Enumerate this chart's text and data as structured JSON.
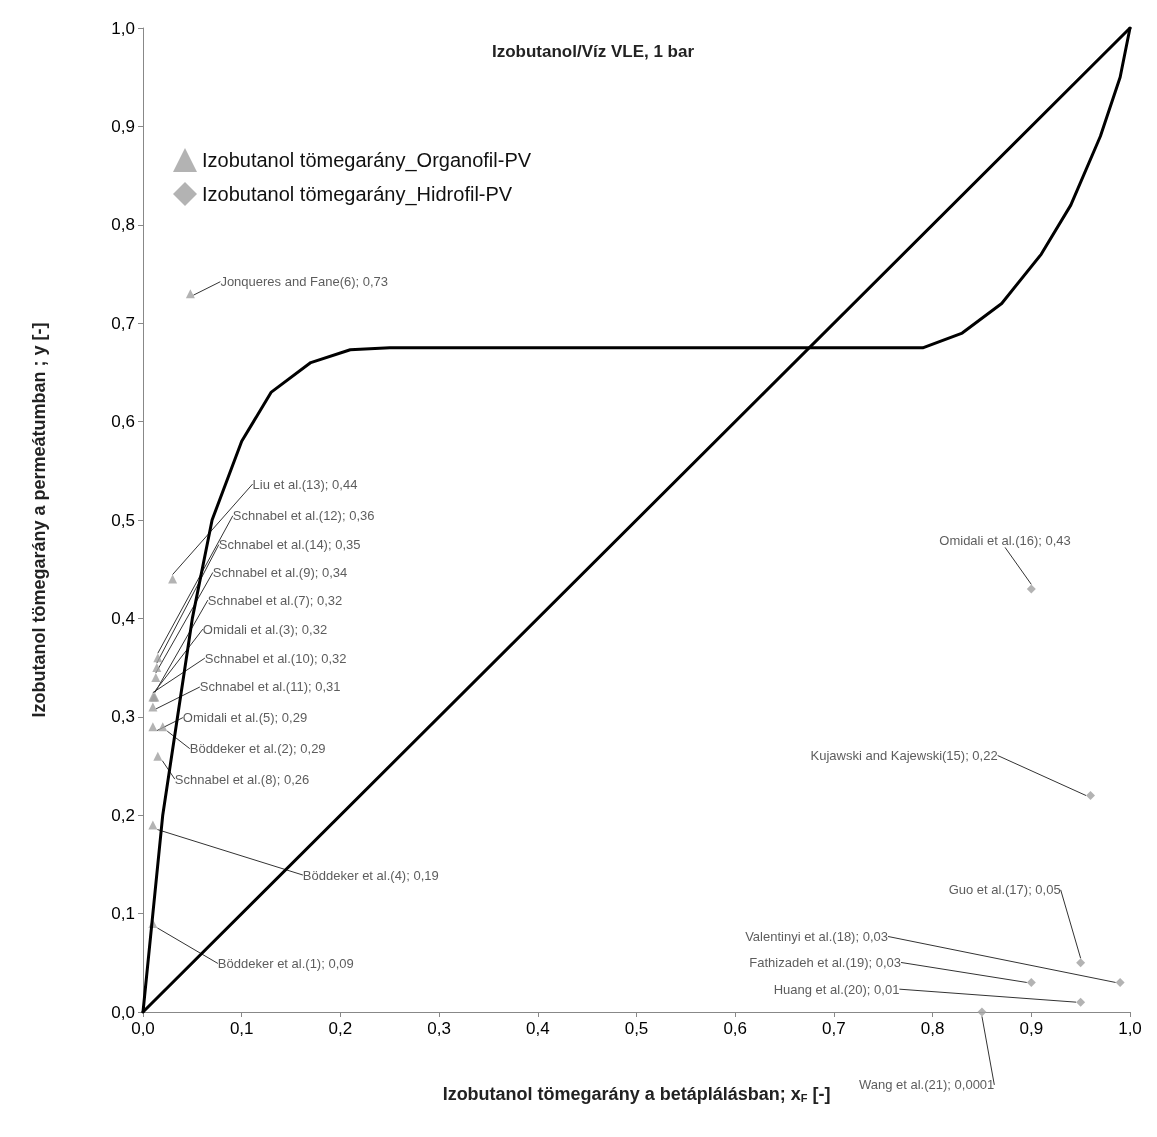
{
  "chart_data": {
    "type": "scatter",
    "title": "Izobutanol/Víz VLE, 1 bar",
    "xlabel": "Izobutanol tömegarány a betáplálásban; x$_{F}$ [-]",
    "ylabel": "Izobutanol tömegarány a permeátumban ; y [-]",
    "xlim": [
      0,
      1
    ],
    "ylim": [
      0,
      1
    ],
    "xticks": [
      {
        "value": 0,
        "label": "0,0"
      },
      {
        "value": 0.1,
        "label": "0,1"
      },
      {
        "value": 0.2,
        "label": "0,2"
      },
      {
        "value": 0.3,
        "label": "0,3"
      },
      {
        "value": 0.4,
        "label": "0,4"
      },
      {
        "value": 0.5,
        "label": "0,5"
      },
      {
        "value": 0.6,
        "label": "0,6"
      },
      {
        "value": 0.7,
        "label": "0,7"
      },
      {
        "value": 0.8,
        "label": "0,8"
      },
      {
        "value": 0.9,
        "label": "0,9"
      },
      {
        "value": 1,
        "label": "1,0"
      }
    ],
    "yticks": [
      {
        "value": 0,
        "label": "0,0"
      },
      {
        "value": 0.1,
        "label": "0,1"
      },
      {
        "value": 0.2,
        "label": "0,2"
      },
      {
        "value": 0.3,
        "label": "0,3"
      },
      {
        "value": 0.4,
        "label": "0,4"
      },
      {
        "value": 0.5,
        "label": "0,5"
      },
      {
        "value": 0.6,
        "label": "0,6"
      },
      {
        "value": 0.7,
        "label": "0,7"
      },
      {
        "value": 0.8,
        "label": "0,8"
      },
      {
        "value": 0.9,
        "label": "0,9"
      },
      {
        "value": 1,
        "label": "1,0"
      }
    ],
    "grid": false,
    "legend": "top left",
    "series": [
      {
        "name": "Izobutanol tömegarány_Organofil-PV",
        "marker": "triangle",
        "color": "#a0a0a0",
        "x": [
          0.048,
          0.03,
          0.015,
          0.014,
          0.013,
          0.012,
          0.011,
          0.01,
          0.01,
          0.01,
          0.02,
          0.015,
          0.01,
          0.01
        ],
        "values": [
          0.73,
          0.44,
          0.36,
          0.35,
          0.34,
          0.32,
          0.32,
          0.32,
          0.31,
          0.29,
          0.29,
          0.26,
          0.19,
          0.09
        ],
        "value_labels": [
          "Jonqueres and Fane(6); 0,73",
          "Liu et al.(13); 0,44",
          "Schnabel et al.(12); 0,36",
          "Schnabel et al.(14); 0,35",
          "Schnabel et al.(9); 0,34",
          "Schnabel et al.(7); 0,32",
          "Omidali et al.(3); 0,32",
          "Schnabel et al.(10); 0,32",
          "Schnabel et al.(11); 0,31",
          "Omidali et al.(5); 0,29",
          "Böddeker et al.(2); 0,29",
          "Schnabel et al.(8); 0,26",
          "Böddeker et al.(4); 0,19",
          "Böddeker et al.(1); 0,09"
        ]
      },
      {
        "name": "Izobutanol tömegarány_Hidrofil-PV",
        "marker": "diamond",
        "color": "#a0a0a0",
        "x": [
          0.9,
          0.96,
          0.95,
          0.99,
          0.9,
          0.95,
          0.85
        ],
        "values": [
          0.43,
          0.22,
          0.05,
          0.03,
          0.03,
          0.01,
          0.0001
        ],
        "value_labels": [
          "Omidali et al.(16); 0,43",
          "Kujawski and Kajewski(15); 0,22",
          "Guo et al.(17); 0,05",
          "Valentinyi et al.(18); 0,03",
          "Fathizadeh et al.(19); 0,03",
          "Huang et al.(20); 0,01",
          "Wang et al.(21); 0,0001"
        ]
      },
      {
        "type": "line",
        "marker": "none",
        "line_style": "solid",
        "color": "#000000",
        "x": [
          0,
          1
        ],
        "values": [
          0,
          1
        ]
      },
      {
        "type": "line",
        "marker": "none",
        "line_style": "solid",
        "color": "#000000",
        "x": [
          0,
          0.01,
          0.02,
          0.035,
          0.05,
          0.07,
          0.1,
          0.13,
          0.17,
          0.21,
          0.25,
          0.79,
          0.83,
          0.87,
          0.91,
          0.94,
          0.97,
          0.99,
          1
        ],
        "values": [
          0,
          0.1,
          0.2,
          0.3,
          0.4,
          0.5,
          0.58,
          0.63,
          0.66,
          0.673,
          0.675,
          0.675,
          0.69,
          0.72,
          0.77,
          0.82,
          0.89,
          0.95,
          1
        ]
      }
    ]
  }
}
